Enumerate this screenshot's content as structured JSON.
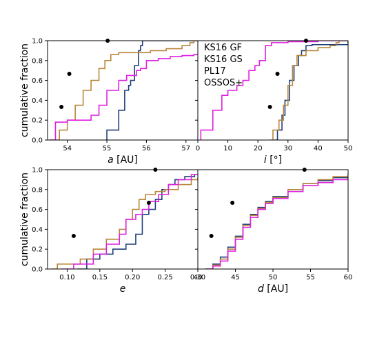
{
  "colors": {
    "KS16 GF": "#1f3f7a",
    "KS16 GS": "#b8863b",
    "PL17": "#e020e0",
    "OSSOS+": "#000000"
  },
  "chart_data": [
    {
      "type": "line",
      "xlabel_var": "a",
      "xlabel_unit": "[AU]",
      "ylabel": "cumulative fraction",
      "xlim": [
        53.5,
        57.3
      ],
      "ylim": [
        0,
        1
      ],
      "xticks": [
        54,
        55,
        56,
        57
      ],
      "yticks": [
        0.0,
        0.2,
        0.4,
        0.6,
        0.8,
        1.0
      ],
      "series": [
        {
          "name": "KS16 GF",
          "x": [
            54.98,
            55.0,
            55.3,
            55.45,
            55.55,
            55.6,
            55.7,
            55.8,
            55.85,
            55.9,
            56.0
          ],
          "y": [
            0.0,
            0.1,
            0.3,
            0.5,
            0.55,
            0.6,
            0.75,
            0.9,
            0.95,
            1.0,
            1.0
          ]
        },
        {
          "name": "KS16 GS",
          "x": [
            53.55,
            53.8,
            54.0,
            54.2,
            54.4,
            54.6,
            54.8,
            54.95,
            55.1,
            55.3,
            55.7,
            56.1,
            56.5,
            56.9,
            57.1,
            57.2
          ],
          "y": [
            0.0,
            0.1,
            0.2,
            0.35,
            0.5,
            0.6,
            0.72,
            0.8,
            0.86,
            0.88,
            0.88,
            0.9,
            0.92,
            0.95,
            0.98,
            1.0
          ]
        },
        {
          "name": "PL17",
          "x": [
            53.55,
            53.7,
            54.0,
            54.4,
            54.6,
            54.8,
            55.0,
            55.3,
            55.5,
            55.75,
            55.85,
            56.0,
            56.3,
            56.6,
            56.9,
            57.2
          ],
          "y": [
            0.0,
            0.18,
            0.2,
            0.2,
            0.25,
            0.35,
            0.5,
            0.6,
            0.65,
            0.7,
            0.72,
            0.8,
            0.82,
            0.84,
            0.85,
            0.86
          ]
        }
      ],
      "points": {
        "name": "OSSOS+",
        "x": [
          53.85,
          54.05,
          55.02
        ],
        "y": [
          0.333,
          0.667,
          1.0
        ]
      }
    },
    {
      "type": "line",
      "xlabel_var": "i",
      "xlabel_unit": "[°]",
      "xlim": [
        0,
        50
      ],
      "ylim": [
        0,
        1
      ],
      "xticks": [
        0,
        10,
        20,
        30,
        40,
        50
      ],
      "yticks": [
        0.0,
        0.2,
        0.4,
        0.6,
        0.8,
        1.0
      ],
      "legend": [
        "KS16 GF",
        "KS16 GS",
        "PL17",
        "OSSOS+"
      ],
      "series": [
        {
          "name": "KS16 GF",
          "x": [
            25.5,
            26.5,
            28.0,
            29.0,
            30.5,
            32.0,
            33.5,
            34.5,
            36.0,
            38.0,
            50
          ],
          "y": [
            0.0,
            0.1,
            0.25,
            0.4,
            0.6,
            0.75,
            0.85,
            0.9,
            0.95,
            0.96,
            1.0
          ]
        },
        {
          "name": "KS16 GS",
          "x": [
            24.0,
            25.0,
            27.0,
            28.5,
            30.0,
            31.5,
            33.0,
            36.0,
            40.0,
            44.0,
            46.0,
            47.0
          ],
          "y": [
            0.0,
            0.1,
            0.2,
            0.35,
            0.55,
            0.75,
            0.85,
            0.9,
            0.93,
            0.95,
            0.98,
            1.0
          ]
        },
        {
          "name": "PL17",
          "x": [
            1.0,
            5.0,
            8.0,
            10.0,
            13.0,
            15.0,
            17.0,
            19.0,
            20.5,
            22.5,
            24.5,
            27.0,
            30.0,
            40.0,
            50.0
          ],
          "y": [
            0.1,
            0.3,
            0.45,
            0.5,
            0.55,
            0.6,
            0.7,
            0.75,
            0.8,
            0.95,
            0.98,
            0.98,
            0.99,
            1.0,
            1.0
          ]
        }
      ],
      "points": {
        "name": "OSSOS+",
        "x": [
          24.0,
          26.5,
          36.0
        ],
        "y": [
          0.333,
          0.667,
          1.0
        ]
      }
    },
    {
      "type": "line",
      "xlabel_var": "e",
      "xlabel_unit": "",
      "ylabel": "cumulative fraction",
      "xlim": [
        0.07,
        0.3
      ],
      "ylim": [
        0,
        1
      ],
      "xticks": [
        0.1,
        0.15,
        0.2,
        0.25,
        0.3
      ],
      "yticks": [
        0.0,
        0.2,
        0.4,
        0.6,
        0.8,
        1.0
      ],
      "series": [
        {
          "name": "KS16 GF",
          "x": [
            0.115,
            0.13,
            0.15,
            0.17,
            0.19,
            0.205,
            0.215,
            0.225,
            0.235,
            0.245,
            0.255,
            0.265,
            0.28,
            0.295
          ],
          "y": [
            0.0,
            0.1,
            0.15,
            0.2,
            0.25,
            0.35,
            0.55,
            0.6,
            0.7,
            0.8,
            0.85,
            0.9,
            0.93,
            0.95
          ]
        },
        {
          "name": "KS16 GS",
          "x": [
            0.075,
            0.085,
            0.12,
            0.14,
            0.16,
            0.18,
            0.19,
            0.2,
            0.21,
            0.22,
            0.235,
            0.25,
            0.27,
            0.29,
            0.3
          ],
          "y": [
            0.0,
            0.05,
            0.1,
            0.2,
            0.3,
            0.4,
            0.5,
            0.6,
            0.7,
            0.75,
            0.78,
            0.8,
            0.85,
            0.9,
            0.92
          ]
        },
        {
          "name": "PL17",
          "x": [
            0.09,
            0.11,
            0.14,
            0.16,
            0.18,
            0.19,
            0.205,
            0.215,
            0.225,
            0.24,
            0.255,
            0.27,
            0.29
          ],
          "y": [
            0.0,
            0.05,
            0.15,
            0.25,
            0.35,
            0.5,
            0.55,
            0.6,
            0.68,
            0.75,
            0.85,
            0.9,
            0.95
          ]
        }
      ],
      "points": {
        "name": "OSSOS+",
        "x": [
          0.11,
          0.225,
          0.235
        ],
        "y": [
          0.333,
          0.667,
          1.0
        ]
      }
    },
    {
      "type": "line",
      "xlabel_var": "d",
      "xlabel_unit": "[AU]",
      "xlim": [
        40,
        60
      ],
      "ylim": [
        0,
        1
      ],
      "xticks": [
        40,
        45,
        50,
        55,
        60
      ],
      "yticks": [
        0.0,
        0.2,
        0.4,
        0.6,
        0.8,
        1.0
      ],
      "series": [
        {
          "name": "KS16 GF",
          "x": [
            41.0,
            42.0,
            43.0,
            44.0,
            45.0,
            46.0,
            47.0,
            48.0,
            49.0,
            50.0,
            52.0,
            54.0,
            56.0,
            58.0,
            60.0
          ],
          "y": [
            0.0,
            0.05,
            0.12,
            0.22,
            0.33,
            0.45,
            0.55,
            0.62,
            0.68,
            0.73,
            0.8,
            0.86,
            0.89,
            0.92,
            0.95
          ]
        },
        {
          "name": "KS16 GS",
          "x": [
            41.0,
            42.0,
            43.0,
            44.0,
            45.0,
            46.0,
            47.0,
            48.0,
            49.0,
            50.0,
            52.0,
            54.0,
            56.0,
            58.0,
            60.0
          ],
          "y": [
            0.0,
            0.04,
            0.1,
            0.2,
            0.32,
            0.44,
            0.54,
            0.61,
            0.67,
            0.72,
            0.8,
            0.86,
            0.9,
            0.93,
            0.96
          ]
        },
        {
          "name": "PL17",
          "x": [
            41.0,
            42.0,
            43.0,
            44.0,
            45.0,
            46.0,
            47.0,
            48.0,
            49.0,
            50.0,
            52.0,
            54.0,
            56.0,
            58.0,
            60.0
          ],
          "y": [
            0.0,
            0.03,
            0.08,
            0.18,
            0.3,
            0.42,
            0.52,
            0.6,
            0.66,
            0.71,
            0.78,
            0.84,
            0.87,
            0.9,
            0.93
          ]
        }
      ],
      "points": {
        "name": "OSSOS+",
        "x": [
          41.8,
          44.6,
          54.2
        ],
        "y": [
          0.333,
          0.667,
          1.0
        ]
      }
    }
  ]
}
